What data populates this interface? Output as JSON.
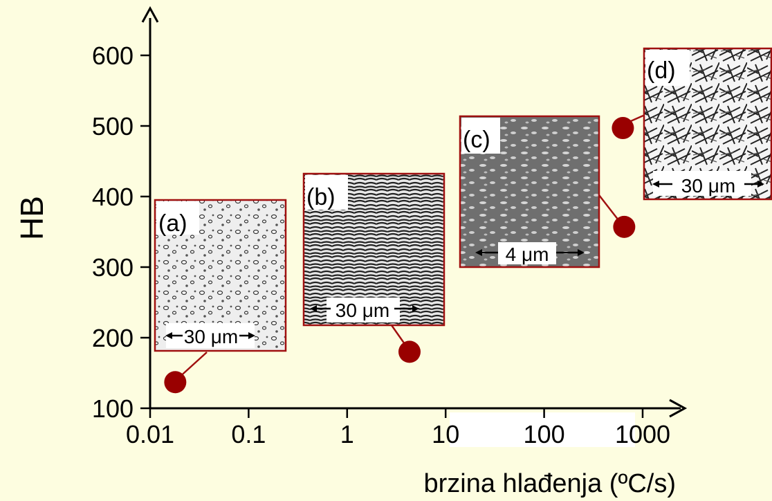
{
  "chart_data": {
    "type": "scatter",
    "title": "",
    "xlabel": "brzina hlađenja (ºC/s)",
    "ylabel": "HB",
    "x_scale": "log",
    "x_ticks": [
      "0.01",
      "0.1",
      "1",
      "10",
      "100",
      "1000"
    ],
    "y_ticks": [
      "100",
      "200",
      "300",
      "400",
      "500",
      "600"
    ],
    "xlim": [
      0.01,
      1000
    ],
    "ylim": [
      100,
      600
    ],
    "grid": false,
    "points": [
      {
        "x": 0.018,
        "y": 137
      },
      {
        "x": 4.3,
        "y": 180
      },
      {
        "x": 650,
        "y": 357
      },
      {
        "x": 630,
        "y": 497
      }
    ],
    "micrographs": [
      {
        "letter": "(a)",
        "scale": "30 μm"
      },
      {
        "letter": "(b)",
        "scale": "30 μm"
      },
      {
        "letter": "(c)",
        "scale": "4 μm"
      },
      {
        "letter": "(d)",
        "scale": "30 μm"
      }
    ],
    "colors": {
      "background": "#fdfde0",
      "marker": "#990000",
      "frame": "#a01010",
      "axis": "#000000"
    }
  }
}
